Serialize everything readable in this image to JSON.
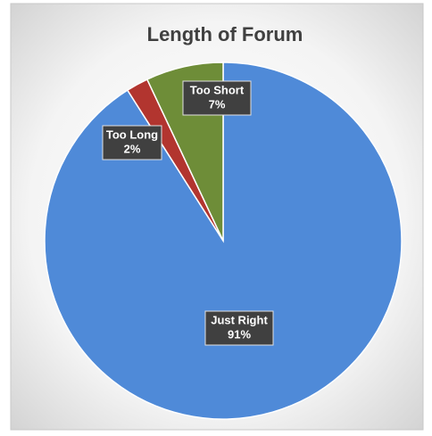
{
  "chart_data": {
    "type": "pie",
    "title": "Length of Forum",
    "categories": [
      "Just Right",
      "Too Long",
      "Too Short"
    ],
    "values": [
      91,
      2,
      7
    ],
    "value_labels": [
      "91%",
      "2%",
      "7%"
    ],
    "colors": [
      "#4f8ad8",
      "#b2352f",
      "#6e8d38"
    ]
  }
}
